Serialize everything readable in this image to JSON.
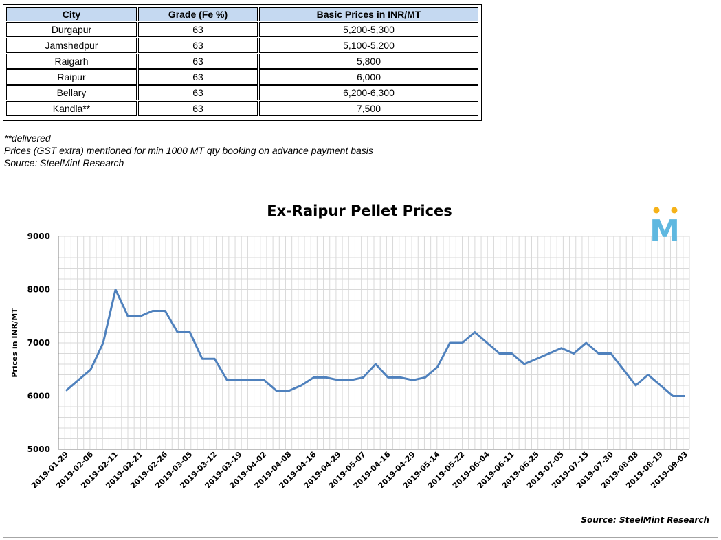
{
  "table": {
    "headers": [
      "City",
      "Grade (Fe %)",
      "Basic Prices in INR/MT"
    ],
    "rows": [
      [
        "Durgapur",
        "63",
        "5,200-5,300"
      ],
      [
        "Jamshedpur",
        "63",
        "5,100-5,200"
      ],
      [
        "Raigarh",
        "63",
        "5,800"
      ],
      [
        "Raipur",
        "63",
        "6,000"
      ],
      [
        "Bellary",
        "63",
        "6,200-6,300"
      ],
      [
        "Kandla**",
        "63",
        "7,500"
      ]
    ]
  },
  "notes": {
    "delivered": "**delivered",
    "gst": "Prices (GST extra) mentioned for min 1000 MT qty booking on advance payment basis",
    "source": "Source: SteelMint Research"
  },
  "colors": {
    "header_fill": "#c5d9f1",
    "line": "#4f81bd",
    "grid": "#d9d9d9",
    "logo_blue": "#5fb8e0",
    "logo_orange": "#f5b21a"
  },
  "logo": {
    "letter": "M",
    "icon": "steelmint-logo-icon"
  },
  "chart_data": {
    "type": "line",
    "title": "Ex-Raipur Pellet Prices",
    "ylabel": "Prices in INR/MT",
    "xlabel": "",
    "ylim": [
      5000,
      9000
    ],
    "yticks": [
      5000,
      6000,
      7000,
      8000,
      9000
    ],
    "xtick_labels": [
      "2019-01-29",
      "2019-02-06",
      "2019-02-11",
      "2019-02-21",
      "2019-02-26",
      "2019-03-05",
      "2019-03-12",
      "2019-03-19",
      "2019-04-02",
      "2019-04-08",
      "2019-04-16",
      "2019-04-29",
      "2019-05-07",
      "2019-04-16",
      "2019-04-29",
      "2019-05-14",
      "2019-05-22",
      "2019-06-04",
      "2019-06-11",
      "2019-06-25",
      "2019-07-05",
      "2019-07-15",
      "2019-07-30",
      "2019-08-08",
      "2019-08-19",
      "2019-09-03"
    ],
    "grid": true,
    "legend": "none",
    "source": "Source: SteelMint Research",
    "values": [
      6100,
      6300,
      6500,
      7000,
      8000,
      7500,
      7500,
      7600,
      7600,
      7200,
      7200,
      6700,
      6700,
      6300,
      6300,
      6300,
      6300,
      6100,
      6100,
      6200,
      6350,
      6350,
      6300,
      6300,
      6350,
      6600,
      6350,
      6350,
      6300,
      6350,
      6550,
      7000,
      7000,
      7200,
      7000,
      6800,
      6800,
      6600,
      6700,
      6800,
      6900,
      6800,
      7000,
      6800,
      6800,
      6500,
      6200,
      6400,
      6200,
      6000,
      6000
    ]
  }
}
